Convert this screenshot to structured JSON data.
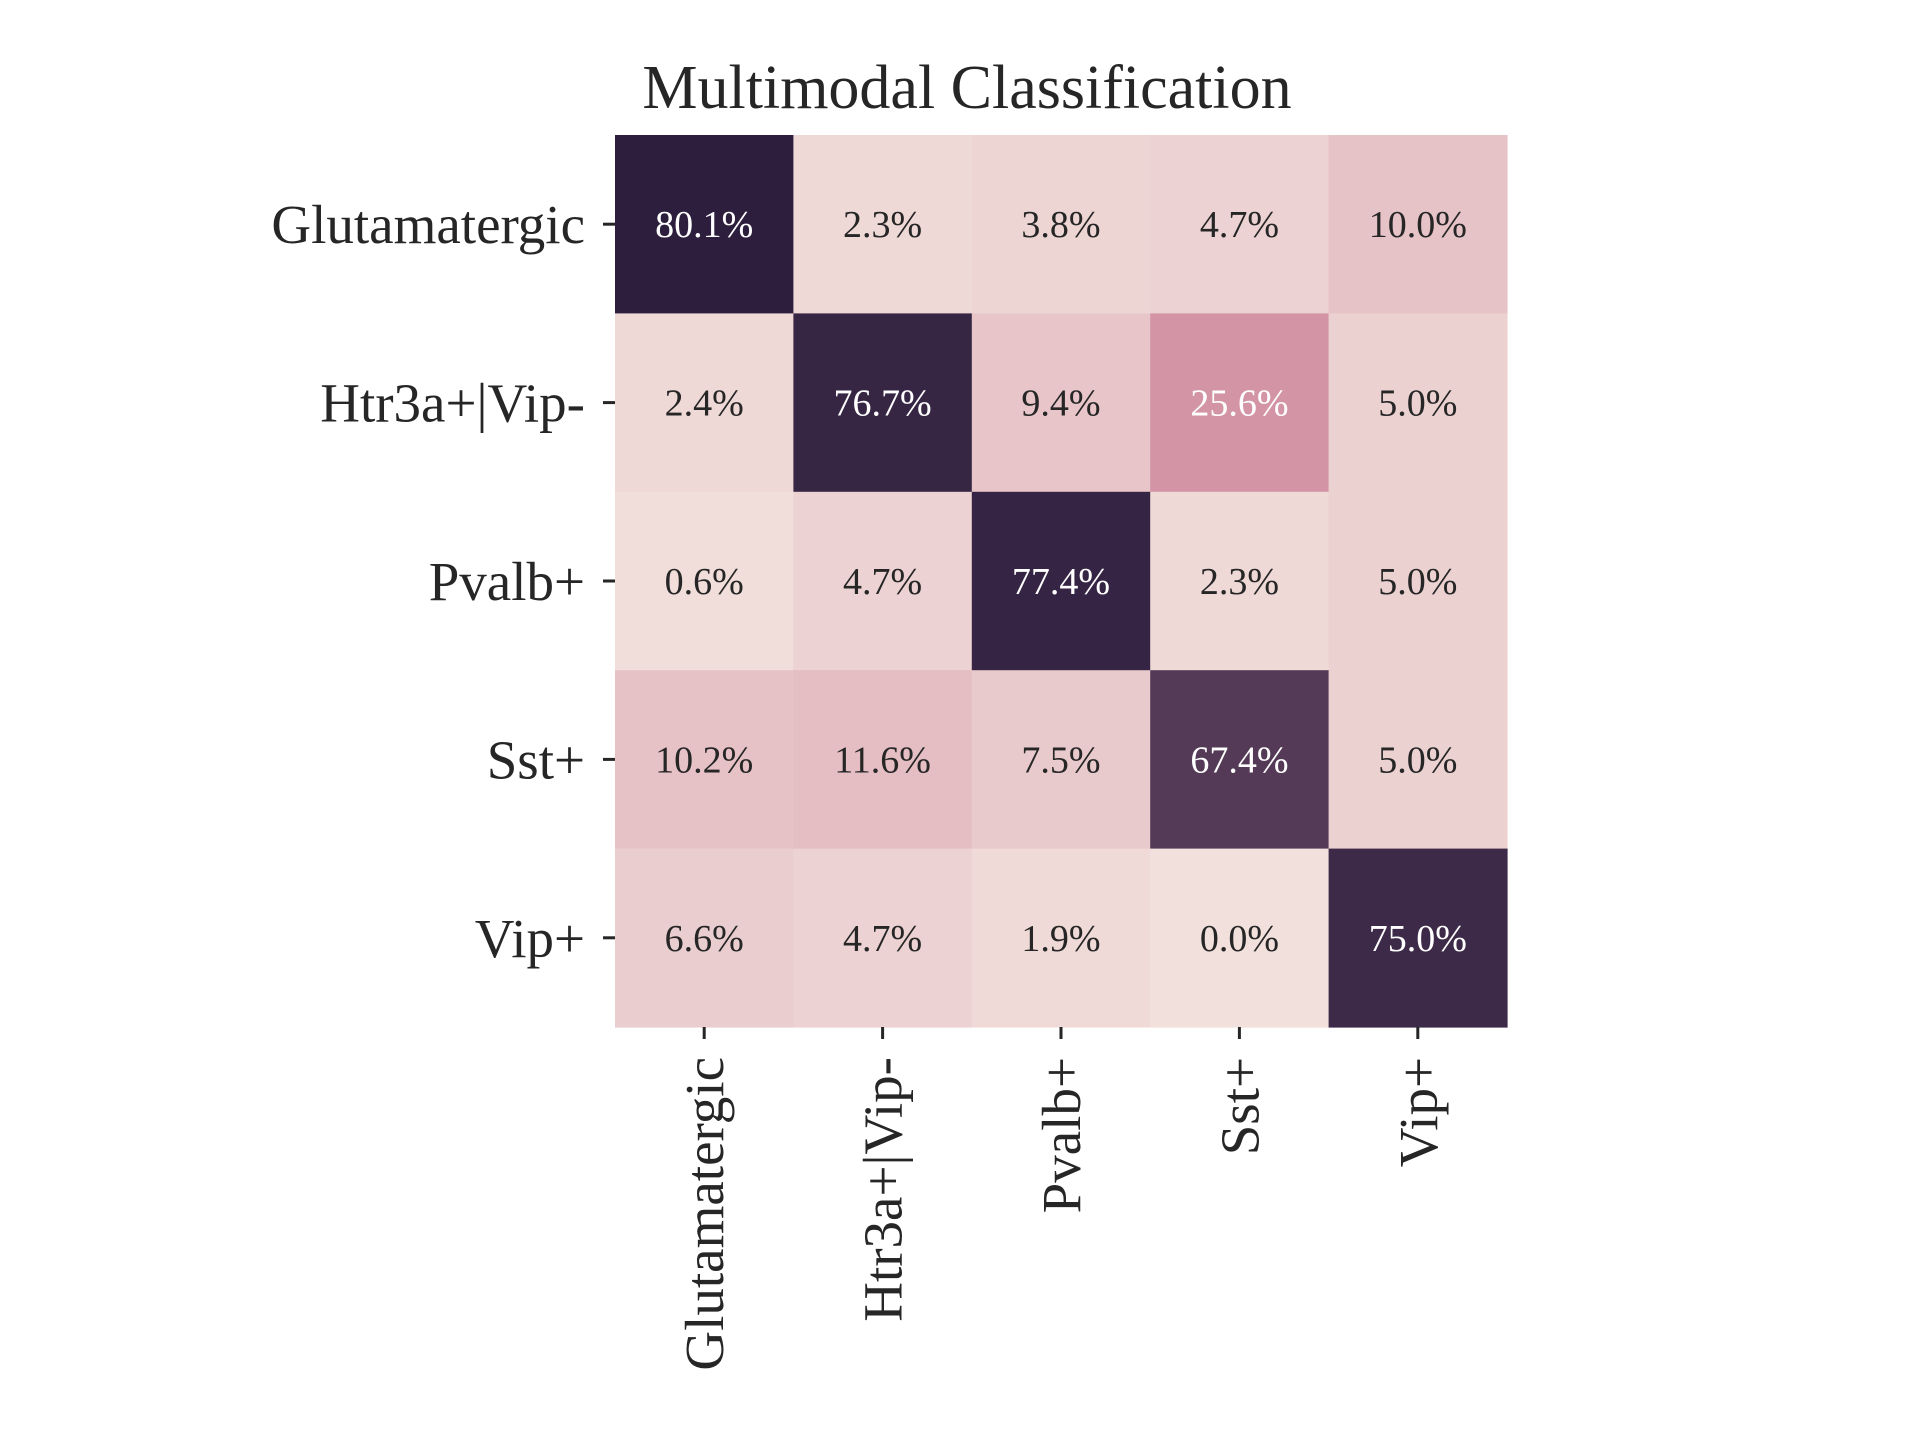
{
  "chart_data": {
    "type": "heatmap",
    "title": "Multimodal Classification",
    "xlabel": "",
    "ylabel": "",
    "rows": [
      "Glutamatergic",
      "Htr3a+|Vip-",
      "Pvalb+",
      "Sst+",
      "Vip+"
    ],
    "columns": [
      "Glutamatergic",
      "Htr3a+|Vip-",
      "Pvalb+",
      "Sst+",
      "Vip+"
    ],
    "values": [
      [
        80.1,
        2.3,
        3.8,
        4.7,
        10.0
      ],
      [
        2.4,
        76.7,
        9.4,
        25.6,
        5.0
      ],
      [
        0.6,
        4.7,
        77.4,
        2.3,
        5.0
      ],
      [
        10.2,
        11.6,
        7.5,
        67.4,
        5.0
      ],
      [
        6.6,
        4.7,
        1.9,
        0.0,
        75.0
      ]
    ],
    "value_format": "percent, one decimal",
    "colorbar": false,
    "colormap": {
      "low": "#f2e0dc",
      "mid": "#d293a4",
      "high": "#2d1e3e"
    }
  }
}
